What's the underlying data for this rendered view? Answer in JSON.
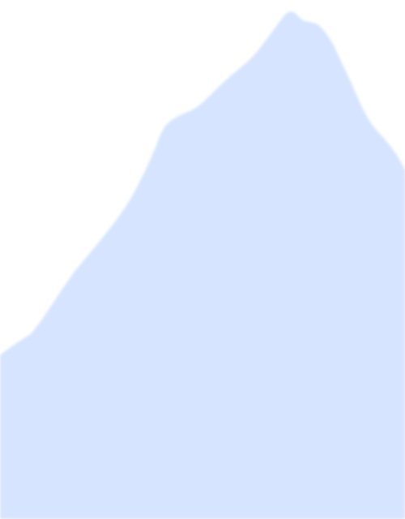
{
  "scene": {
    "background_color": "#ffffff",
    "shape_fill_color": "#d6e4ff",
    "shape_edge_color": "#cddcfb",
    "icon": "mountain-silhouette"
  }
}
